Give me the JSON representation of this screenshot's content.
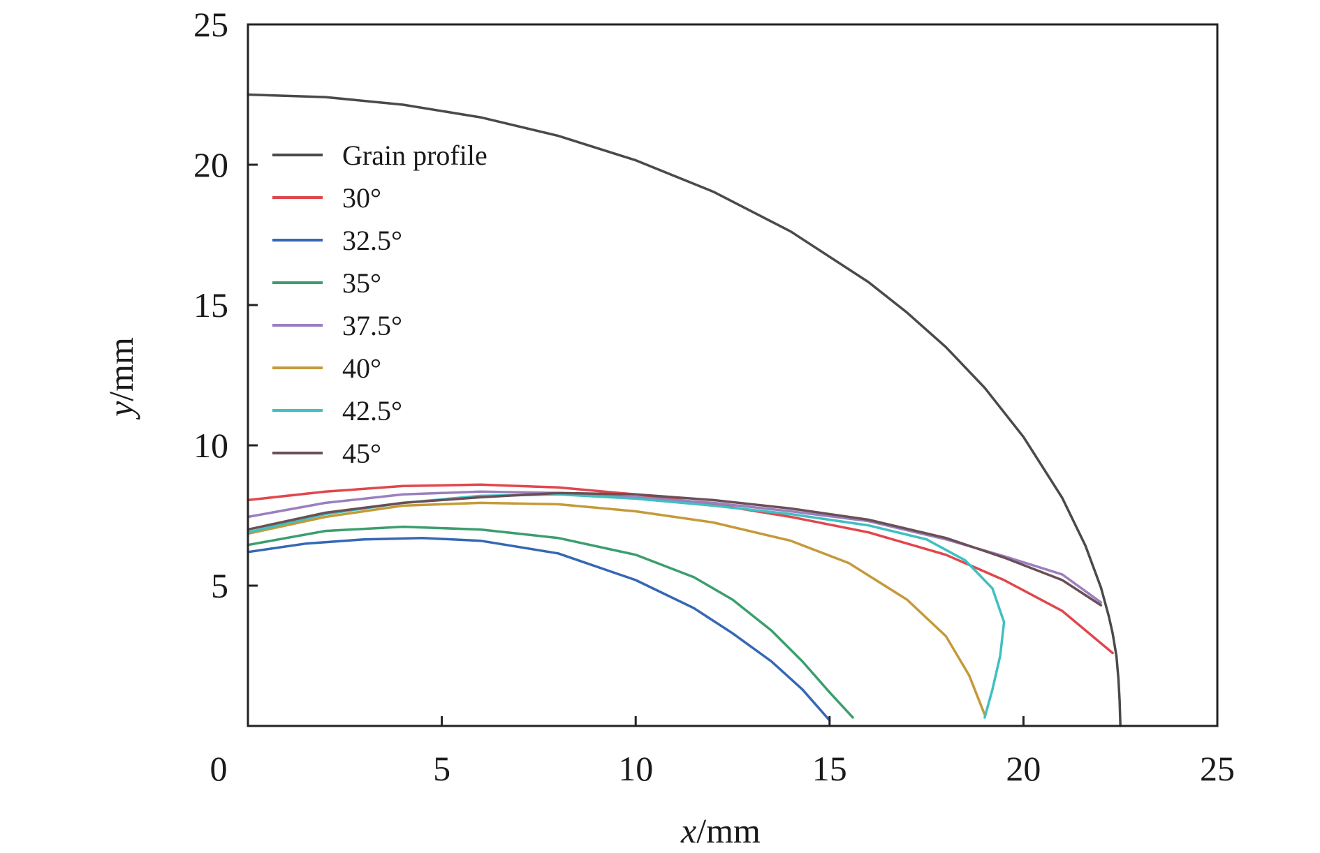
{
  "chart_data": {
    "type": "line",
    "xlabel": {
      "var": "x",
      "unit": "/mm"
    },
    "ylabel": {
      "var": "y",
      "unit": "/mm"
    },
    "xlim": [
      0,
      25
    ],
    "ylim": [
      0,
      25
    ],
    "xticks": [
      0,
      5,
      10,
      15,
      20,
      25
    ],
    "yticks": [
      5,
      10,
      15,
      20,
      25
    ],
    "grid": false,
    "legend_position": "top-left",
    "series": [
      {
        "name": "Grain profile",
        "color": "#4a4a4a",
        "points": [
          [
            0,
            22.5
          ],
          [
            2,
            22.41
          ],
          [
            4,
            22.14
          ],
          [
            6,
            21.69
          ],
          [
            8,
            21.03
          ],
          [
            10,
            20.16
          ],
          [
            12,
            19.04
          ],
          [
            14,
            17.62
          ],
          [
            16,
            15.82
          ],
          [
            17,
            14.73
          ],
          [
            18,
            13.5
          ],
          [
            19,
            12.05
          ],
          [
            20,
            10.3
          ],
          [
            21,
            8.13
          ],
          [
            21.6,
            6.42
          ],
          [
            22,
            4.93
          ],
          [
            22.2,
            3.92
          ],
          [
            22.3,
            3.3
          ],
          [
            22.4,
            2.48
          ],
          [
            22.45,
            1.67
          ],
          [
            22.48,
            0.9
          ],
          [
            22.5,
            0
          ]
        ]
      },
      {
        "name": "30°",
        "color": "#e0474c",
        "points": [
          [
            0,
            8.05
          ],
          [
            2,
            8.35
          ],
          [
            4,
            8.55
          ],
          [
            6,
            8.6
          ],
          [
            8,
            8.5
          ],
          [
            10,
            8.25
          ],
          [
            12,
            7.9
          ],
          [
            14,
            7.45
          ],
          [
            16,
            6.9
          ],
          [
            18,
            6.1
          ],
          [
            19.5,
            5.2
          ],
          [
            21,
            4.1
          ],
          [
            22.3,
            2.6
          ]
        ]
      },
      {
        "name": "32.5°",
        "color": "#3567b5",
        "points": [
          [
            0,
            6.2
          ],
          [
            1.5,
            6.5
          ],
          [
            3,
            6.65
          ],
          [
            4.5,
            6.7
          ],
          [
            6,
            6.6
          ],
          [
            8,
            6.15
          ],
          [
            10,
            5.2
          ],
          [
            11.5,
            4.2
          ],
          [
            12.5,
            3.3
          ],
          [
            13.5,
            2.3
          ],
          [
            14.3,
            1.3
          ],
          [
            15,
            0.2
          ]
        ]
      },
      {
        "name": "35°",
        "color": "#3b9e6e",
        "points": [
          [
            0,
            6.45
          ],
          [
            2,
            6.95
          ],
          [
            4,
            7.1
          ],
          [
            6,
            7.0
          ],
          [
            8,
            6.7
          ],
          [
            10,
            6.1
          ],
          [
            11.5,
            5.3
          ],
          [
            12.5,
            4.5
          ],
          [
            13.5,
            3.4
          ],
          [
            14.3,
            2.3
          ],
          [
            15,
            1.2
          ],
          [
            15.6,
            0.3
          ]
        ]
      },
      {
        "name": "37.5°",
        "color": "#9a7fc0",
        "points": [
          [
            0,
            7.45
          ],
          [
            2,
            7.95
          ],
          [
            4,
            8.25
          ],
          [
            6,
            8.35
          ],
          [
            8,
            8.3
          ],
          [
            10,
            8.15
          ],
          [
            12,
            7.95
          ],
          [
            14,
            7.65
          ],
          [
            16,
            7.3
          ],
          [
            18,
            6.65
          ],
          [
            19.5,
            6.05
          ],
          [
            21,
            5.4
          ],
          [
            22,
            4.4
          ]
        ]
      },
      {
        "name": "40°",
        "color": "#c49a3a",
        "points": [
          [
            0,
            6.85
          ],
          [
            2,
            7.45
          ],
          [
            4,
            7.85
          ],
          [
            6,
            7.95
          ],
          [
            8,
            7.9
          ],
          [
            10,
            7.65
          ],
          [
            12,
            7.25
          ],
          [
            14,
            6.6
          ],
          [
            15.5,
            5.8
          ],
          [
            17,
            4.5
          ],
          [
            18,
            3.2
          ],
          [
            18.6,
            1.8
          ],
          [
            19.0,
            0.4
          ]
        ]
      },
      {
        "name": "42.5°",
        "color": "#40c0c0",
        "points": [
          [
            0,
            6.9
          ],
          [
            2,
            7.55
          ],
          [
            4,
            7.95
          ],
          [
            6,
            8.2
          ],
          [
            8,
            8.25
          ],
          [
            10,
            8.1
          ],
          [
            12,
            7.85
          ],
          [
            14,
            7.55
          ],
          [
            16,
            7.15
          ],
          [
            17.5,
            6.65
          ],
          [
            18.5,
            5.9
          ],
          [
            19.2,
            4.9
          ],
          [
            19.5,
            3.7
          ],
          [
            19.4,
            2.5
          ],
          [
            19.2,
            1.3
          ],
          [
            19.0,
            0.3
          ]
        ]
      },
      {
        "name": "45°",
        "color": "#6b4f55",
        "points": [
          [
            0,
            7.0
          ],
          [
            2,
            7.6
          ],
          [
            4,
            7.95
          ],
          [
            6,
            8.15
          ],
          [
            8,
            8.3
          ],
          [
            10,
            8.25
          ],
          [
            12,
            8.05
          ],
          [
            14,
            7.75
          ],
          [
            16,
            7.35
          ],
          [
            18,
            6.7
          ],
          [
            19.5,
            6.0
          ],
          [
            21,
            5.2
          ],
          [
            22,
            4.3
          ]
        ]
      }
    ]
  }
}
